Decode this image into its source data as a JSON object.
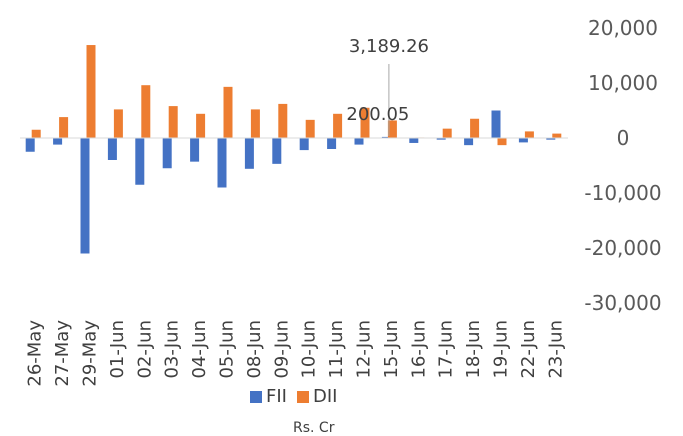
{
  "chart_data": {
    "type": "bar",
    "categories": [
      "26-May",
      "27-May",
      "29-May",
      "01-Jun",
      "02-Jun",
      "03-Jun",
      "04-Jun",
      "05-Jun",
      "08-Jun",
      "09-Jun",
      "10-Jun",
      "11-Jun",
      "12-Jun",
      "15-Jun",
      "16-Jun",
      "17-Jun",
      "18-Jun",
      "19-Jun",
      "22-Jun",
      "23-Jun"
    ],
    "series": [
      {
        "name": "FII",
        "color": "#4472C4",
        "values": [
          -2500,
          -1200,
          -21000,
          -4000,
          -8500,
          -5500,
          -4300,
          -9000,
          -5600,
          -4700,
          -2200,
          -2000,
          -1200,
          200.05,
          -900,
          -300,
          -1300,
          5000,
          -800,
          -300
        ]
      },
      {
        "name": "DII",
        "color": "#ED7D31",
        "values": [
          1500,
          3800,
          16900,
          5200,
          9600,
          5800,
          4400,
          9300,
          5200,
          6200,
          3300,
          4400,
          5500,
          3189.26,
          100,
          1700,
          3500,
          -1300,
          1200,
          800
        ]
      }
    ],
    "ylim": [
      -30000,
      20000
    ],
    "yticks": [
      "20,000",
      "10,000",
      "0",
      "-10,000",
      "-20,000",
      "-30,000"
    ],
    "ytick_values": [
      20000,
      10000,
      0,
      -10000,
      -20000,
      -30000
    ],
    "annotations": [
      "3,189.26",
      "200.05"
    ],
    "xlabel": "Rs. Cr",
    "legend": "bottom",
    "grid": false
  }
}
